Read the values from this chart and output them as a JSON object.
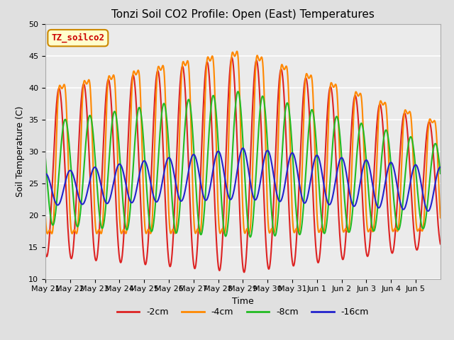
{
  "title": "Tonzi Soil CO2 Profile: Open (East) Temperatures",
  "ylabel": "Soil Temperature (C)",
  "xlabel": "Time",
  "ylim": [
    10,
    50
  ],
  "background_color": "#e0e0e0",
  "plot_bg_color": "#ebebeb",
  "grid_color": "#ffffff",
  "annotation_text": "TZ_soilco2",
  "annotation_color": "#cc0000",
  "annotation_bg": "#ffffcc",
  "annotation_border": "#cc8800",
  "series": [
    {
      "label": "-2cm",
      "color": "#dd2222",
      "lw": 1.5
    },
    {
      "label": "-4cm",
      "color": "#ff8800",
      "lw": 1.5
    },
    {
      "label": "-8cm",
      "color": "#22bb22",
      "lw": 1.5
    },
    {
      "label": "-16cm",
      "color": "#2222cc",
      "lw": 1.5
    }
  ],
  "xtick_labels": [
    "May 21",
    "May 22",
    "May 23",
    "May 24",
    "May 25",
    "May 26",
    "May 27",
    "May 28",
    "May 29",
    "May 30",
    "May 31",
    "Jun 1",
    "Jun 2",
    "Jun 3",
    "Jun 4",
    "Jun 5"
  ],
  "title_fontsize": 11,
  "legend_fontsize": 9,
  "tick_fontsize": 8
}
